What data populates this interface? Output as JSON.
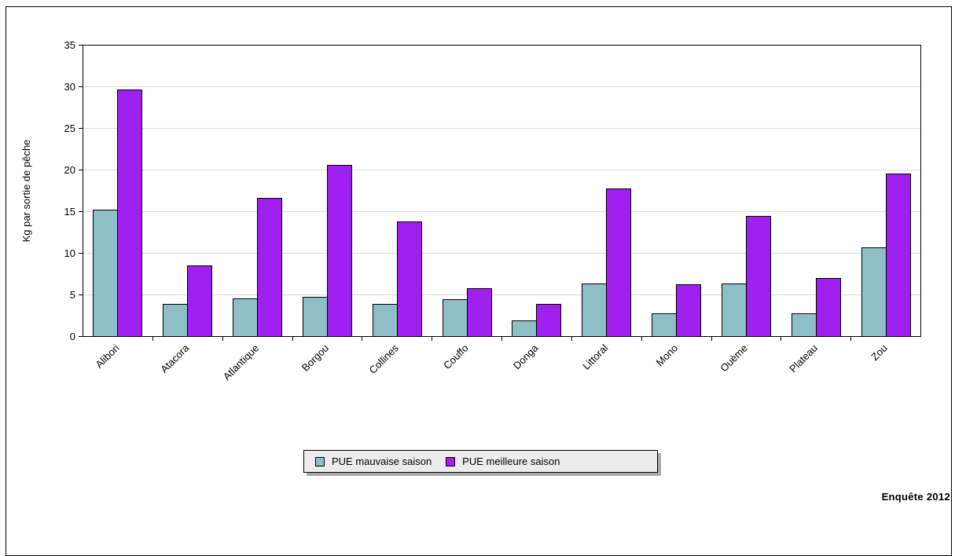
{
  "chart_data": {
    "type": "bar",
    "categories": [
      "Alibori",
      "Atacora",
      "Atlantique",
      "Borgou",
      "Collines",
      "Couffo",
      "Donga",
      "Littoral",
      "Mono",
      "Ouème",
      "Plateau",
      "Zou"
    ],
    "series": [
      {
        "name": "PUE mauvaise saison",
        "color": "#8fbfc6",
        "values": [
          15.2,
          3.9,
          4.5,
          4.7,
          3.9,
          4.4,
          1.9,
          6.3,
          2.7,
          6.3,
          2.7,
          10.7
        ]
      },
      {
        "name": "PUE meilleure saison",
        "color": "#a020f0",
        "values": [
          29.6,
          8.5,
          16.6,
          20.6,
          13.8,
          5.8,
          3.9,
          17.7,
          6.2,
          14.4,
          7.0,
          19.5
        ]
      }
    ],
    "ylabel": "Kg par sortie de pêche",
    "ylim": [
      0,
      35
    ],
    "yticks": [
      0,
      5,
      10,
      15,
      20,
      25,
      30,
      35
    ],
    "grid": true,
    "legend_position": "bottom"
  },
  "credit": "Enquête 2012"
}
